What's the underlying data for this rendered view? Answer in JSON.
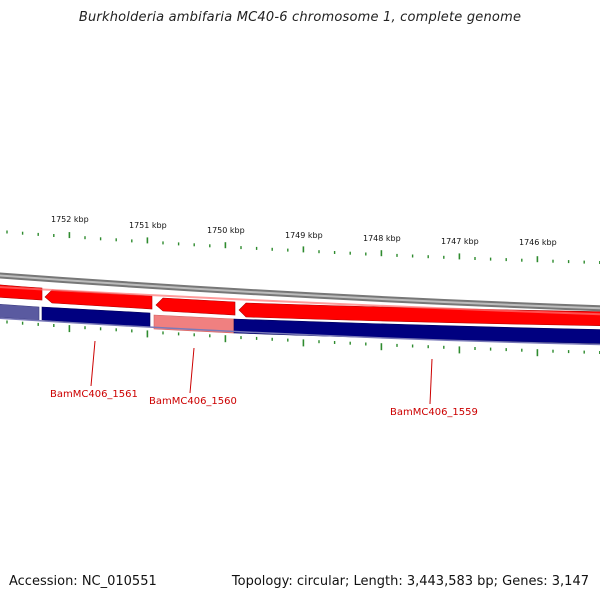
{
  "title": "Burkholderia ambifaria MC40-6 chromosome 1, complete genome",
  "footer": {
    "accession": "Accession: NC_010551",
    "summary": "Topology: circular; Length: 3,443,583 bp; Genes: 3,147"
  },
  "ruler": {
    "labels": [
      "1752 kbp",
      "1751 kbp",
      "1750 kbp",
      "1749 kbp",
      "1748 kbp",
      "1747 kbp",
      "1746 kbp"
    ]
  },
  "genes": [
    {
      "label": "BamMC406_1561"
    },
    {
      "label": "BamMC406_1560"
    },
    {
      "label": "BamMC406_1559"
    }
  ],
  "colors": {
    "forward_strand": "#ff0000",
    "forward_strand_dark": "#b30000",
    "reverse_strand": "#000080",
    "reverse_strand_light": "#5a5aa0",
    "highlight_gene": "#f08080",
    "backbone": "#888888",
    "tick": "#2e8b2e",
    "gene_label": "#cc0000"
  }
}
